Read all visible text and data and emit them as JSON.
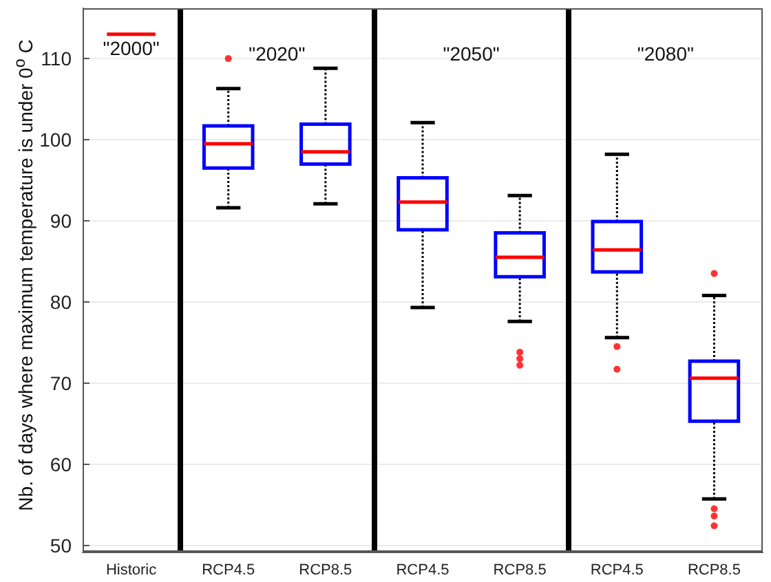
{
  "chart_data": {
    "type": "box",
    "ylabel": "Nb. of days where maximum temperature is under 0$^{o}$ C",
    "categories": [
      "Historic",
      "RCP4.5",
      "RCP8.5",
      "RCP4.5",
      "RCP8.5",
      "RCP4.5",
      "RCP8.5"
    ],
    "annotations": [
      "\"2000\"",
      "\"2020\"",
      "\"2050\"",
      "\"2080\""
    ],
    "series": [
      {
        "colors": [
          "#ff0000",
          "#0000ff",
          "#0000ff",
          "#0000ff",
          "#0000ff",
          "#0000ff",
          "#0000ff"
        ],
        "boxes": [
          {
            "low": 113,
            "q1": 113,
            "median": 113,
            "q3": 113,
            "high": 113
          },
          {
            "low": 91.6,
            "q1": 96.5,
            "median": 99.5,
            "q3": 101.7,
            "high": 106.3,
            "outliers": [
              110
            ]
          },
          {
            "low": 92.1,
            "q1": 97.0,
            "median": 98.5,
            "q3": 101.9,
            "high": 108.8
          },
          {
            "low": 79.3,
            "q1": 88.9,
            "median": 92.3,
            "q3": 95.3,
            "high": 102.1
          },
          {
            "low": 77.6,
            "q1": 83.1,
            "median": 85.5,
            "q3": 88.5,
            "high": 93.1,
            "outliers": [
              73.8,
              73.0,
              72.2
            ]
          },
          {
            "low": 75.6,
            "q1": 83.7,
            "median": 86.4,
            "q3": 89.9,
            "high": 98.2,
            "outliers": [
              74.5,
              71.7
            ]
          },
          {
            "low": 55.7,
            "q1": 65.3,
            "median": 70.6,
            "q3": 72.7,
            "high": 80.8,
            "outliers": [
              83.5,
              54.5,
              53.6,
              52.4
            ]
          }
        ]
      }
    ],
    "ylim": [
      49.2,
      116.2
    ],
    "yticks": [
      50,
      60,
      70,
      80,
      90,
      100,
      110
    ],
    "grid": "y",
    "marker": "circle"
  }
}
